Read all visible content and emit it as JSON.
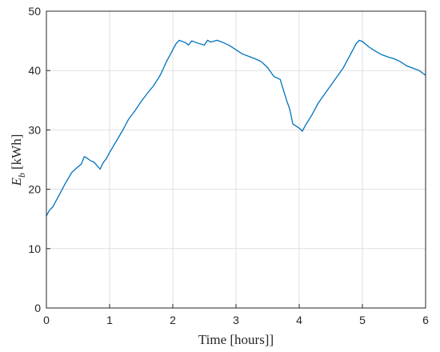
{
  "chart_data": {
    "type": "line",
    "xlabel": "Time [hours]]",
    "ylabel": {
      "symbol": "E",
      "subscript": "b",
      "unit": "[kWh]"
    },
    "x": [
      0,
      0.05,
      0.1,
      0.2,
      0.3,
      0.4,
      0.5,
      0.55,
      0.6,
      0.65,
      0.7,
      0.75,
      0.8,
      0.85,
      0.9,
      0.95,
      1.0,
      1.1,
      1.2,
      1.3,
      1.4,
      1.5,
      1.6,
      1.7,
      1.8,
      1.9,
      2.0,
      2.05,
      2.1,
      2.2,
      2.25,
      2.3,
      2.4,
      2.5,
      2.55,
      2.6,
      2.7,
      2.8,
      2.9,
      3.0,
      3.1,
      3.2,
      3.3,
      3.4,
      3.5,
      3.6,
      3.7,
      3.8,
      3.85,
      3.9,
      4.0,
      4.05,
      4.1,
      4.2,
      4.3,
      4.4,
      4.5,
      4.6,
      4.7,
      4.8,
      4.9,
      4.95,
      5.0,
      5.1,
      5.2,
      5.3,
      5.4,
      5.5,
      5.6,
      5.7,
      5.8,
      5.9,
      6.0
    ],
    "series": [
      {
        "color": "#0072bd",
        "values": [
          15.5,
          16.5,
          17,
          19,
          21,
          22.8,
          23.8,
          24.2,
          25.5,
          25.2,
          24.8,
          24.6,
          24.0,
          23.4,
          24.5,
          25.2,
          26.2,
          28,
          29.8,
          31.8,
          33.2,
          34.8,
          36.2,
          37.5,
          39.2,
          41.5,
          43.5,
          44.5,
          45.1,
          44.7,
          44.3,
          45.0,
          44.6,
          44.3,
          45.1,
          44.8,
          45.1,
          44.7,
          44.2,
          43.5,
          42.8,
          42.4,
          42.0,
          41.5,
          40.5,
          39.0,
          38.5,
          35,
          33.5,
          31,
          30.3,
          29.8,
          30.8,
          32.5,
          34.5,
          36,
          37.5,
          39,
          40.5,
          42.5,
          44.5,
          45.1,
          44.9,
          44.0,
          43.3,
          42.7,
          42.3,
          42.0,
          41.5,
          40.8,
          40.4,
          40.0,
          39.2
        ]
      }
    ],
    "xlim": [
      0,
      6
    ],
    "xticks": [
      0,
      1,
      2,
      3,
      4,
      5,
      6
    ],
    "ylim": [
      0,
      50
    ],
    "yticks": [
      0,
      10,
      20,
      30,
      40,
      50
    ],
    "grid": true
  }
}
